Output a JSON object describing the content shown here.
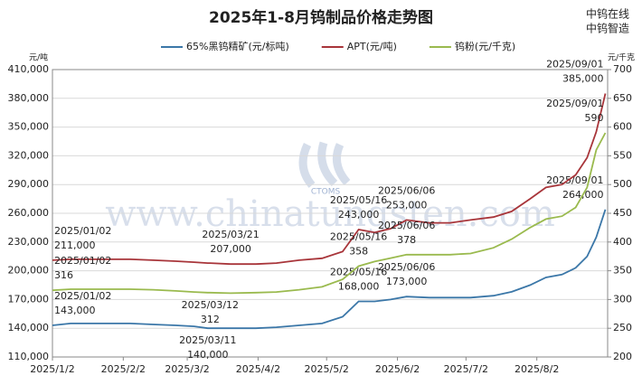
{
  "chart_data": {
    "type": "line",
    "title": "2025年1-8月钨制品价格走势图",
    "brand": [
      "中钨在线",
      "中钨智造"
    ],
    "watermark": "www.chinatungsten.com",
    "logo_text": "CTOMS",
    "y_unit": "元/吨",
    "y2_unit": "元/千克",
    "x": [
      "2025/01/02",
      "2025/01/10",
      "2025/01/20",
      "2025/02/05",
      "2025/02/15",
      "2025/02/25",
      "2025/03/05",
      "2025/03/11",
      "2025/03/12",
      "2025/03/21",
      "2025/04/01",
      "2025/04/10",
      "2025/04/20",
      "2025/04/30",
      "2025/05/09",
      "2025/05/16",
      "2025/05/23",
      "2025/05/30",
      "2025/06/06",
      "2025/06/16",
      "2025/06/25",
      "2025/07/04",
      "2025/07/14",
      "2025/07/22",
      "2025/07/30",
      "2025/08/06",
      "2025/08/13",
      "2025/08/19",
      "2025/08/24",
      "2025/08/28",
      "2025/09/01"
    ],
    "xlim": [
      "2025/1/2",
      "2025/9/2"
    ],
    "xticks": [
      "2025/1/2",
      "2025/2/2",
      "2025/3/2",
      "2025/4/2",
      "2025/5/2",
      "2025/6/2",
      "2025/7/2",
      "2025/8/2"
    ],
    "ylim": [
      110000,
      410000
    ],
    "yticks": [
      {
        "value": 110000,
        "label": "110,000"
      },
      {
        "value": 140000,
        "label": "140,000"
      },
      {
        "value": 170000,
        "label": "170,000"
      },
      {
        "value": 200000,
        "label": "200,000"
      },
      {
        "value": 230000,
        "label": "230,000"
      },
      {
        "value": 260000,
        "label": "260,000"
      },
      {
        "value": 290000,
        "label": "290,000"
      },
      {
        "value": 320000,
        "label": "320,000"
      },
      {
        "value": 350000,
        "label": "350,000"
      },
      {
        "value": 380000,
        "label": "380,000"
      },
      {
        "value": 410000,
        "label": "410,000"
      }
    ],
    "y2lim": [
      200,
      700
    ],
    "y2ticks": [
      200,
      250,
      300,
      350,
      400,
      450,
      500,
      550,
      600,
      650,
      700
    ],
    "grid": true,
    "series": [
      {
        "name": "65%黑钨精矿(元/标吨)",
        "color": "#3b77a8",
        "values": [
          143000,
          145000,
          145000,
          145000,
          144000,
          143000,
          142000,
          140000,
          140000,
          140000,
          140000,
          141000,
          143000,
          145000,
          152000,
          168000,
          168000,
          170000,
          173000,
          172000,
          172000,
          172000,
          174000,
          178000,
          185000,
          193000,
          196000,
          203000,
          215000,
          235000,
          264000
        ],
        "annotations": [
          {
            "date": "2025/01/02",
            "label": "143,000"
          },
          {
            "date": "2025/03/11",
            "label": "140,000"
          },
          {
            "date": "2025/05/16",
            "label": "168,000"
          },
          {
            "date": "2025/06/06",
            "label": "173,000"
          },
          {
            "date": "2025/09/01",
            "label": "264,000"
          }
        ]
      },
      {
        "name": "APT(元/吨)",
        "color": "#a8353a",
        "values": [
          211000,
          212000,
          212000,
          212000,
          211000,
          210000,
          209000,
          208000,
          208000,
          207000,
          207000,
          208000,
          211000,
          213000,
          220000,
          243000,
          240000,
          244000,
          253000,
          250000,
          250000,
          253000,
          256000,
          262000,
          275000,
          287000,
          290000,
          300000,
          318000,
          345000,
          385000
        ],
        "annotations": [
          {
            "date": "2025/01/02",
            "label": "211,000"
          },
          {
            "date": "2025/03/21",
            "label": "207,000"
          },
          {
            "date": "2025/05/16",
            "label": "243,000"
          },
          {
            "date": "2025/06/06",
            "label": "253,000"
          },
          {
            "date": "2025/09/01",
            "label": "385,000"
          }
        ]
      },
      {
        "name": "钨粉(元/千克)",
        "color": "#9aba4e",
        "axis": "y2",
        "values": [
          316,
          318,
          318,
          318,
          317,
          315,
          313,
          312,
          312,
          311,
          312,
          313,
          317,
          322,
          335,
          358,
          366,
          372,
          378,
          378,
          378,
          380,
          390,
          405,
          425,
          440,
          445,
          460,
          495,
          560,
          590
        ],
        "annotations": [
          {
            "date": "2025/01/02",
            "label": "316"
          },
          {
            "date": "2025/03/12",
            "label": "312"
          },
          {
            "date": "2025/05/16",
            "label": "358"
          },
          {
            "date": "2025/06/06",
            "label": "378"
          },
          {
            "date": "2025/09/01",
            "label": "590"
          }
        ]
      }
    ]
  }
}
